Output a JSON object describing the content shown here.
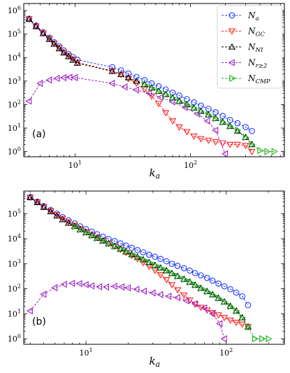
{
  "chart_data": [
    {
      "type": "line",
      "panel_label": "(a)",
      "xlabel": "k_a",
      "xscale": "log",
      "yscale": "log",
      "xlim": [
        3.6,
        650
      ],
      "ylim": [
        0.6,
        2000000
      ],
      "legend": {
        "position": "top-right",
        "show": true
      },
      "series": [
        {
          "name": "N_a",
          "color": "#1f3cff",
          "marker": "circle",
          "x": [
            4,
            4.6,
            5.3,
            6,
            6.6,
            7.3,
            8,
            8.8,
            9.6,
            10.5,
            21,
            25,
            29,
            34,
            40,
            46,
            53,
            61,
            70,
            80,
            93,
            107,
            123,
            143,
            165,
            190,
            220,
            255,
            300,
            340
          ],
          "y": [
            450000,
            230000,
            120000,
            70000,
            45000,
            30000,
            20000,
            14000,
            10500,
            8000,
            3900,
            2900,
            2100,
            1500,
            1100,
            800,
            600,
            440,
            320,
            240,
            170,
            125,
            90,
            65,
            47,
            33,
            22,
            16,
            11,
            7.5
          ]
        },
        {
          "name": "N_GC",
          "color": "#ff2020",
          "marker": "triangle-down",
          "x": [
            4,
            4.6,
            5.3,
            6,
            6.6,
            7.3,
            8,
            8.8,
            9.6,
            10.5,
            21,
            25,
            29,
            34,
            40,
            46,
            53,
            61,
            70,
            80,
            93,
            107,
            123,
            143,
            165,
            190,
            220,
            255,
            300,
            340
          ],
          "y": [
            440000,
            220000,
            110000,
            65000,
            40000,
            26000,
            17000,
            12000,
            8500,
            6200,
            2700,
            1900,
            1250,
            800,
            450,
            230,
            110,
            45,
            20,
            11,
            7,
            4.5,
            3.5,
            3,
            2.6,
            2.3,
            2,
            2,
            1.8,
            1
          ]
        },
        {
          "name": "N_NI",
          "color": "#000000",
          "marker": "triangle-up",
          "x": [
            4,
            4.6,
            5.3,
            6,
            6.6,
            7.3,
            8,
            8.8,
            9.6,
            10.5,
            21,
            25,
            29,
            34,
            40,
            46,
            53,
            61,
            70,
            80,
            93,
            107,
            123,
            143,
            165,
            190,
            220,
            255,
            300,
            340
          ],
          "y": [
            430000,
            210000,
            105000,
            60000,
            38000,
            24000,
            16000,
            11000,
            7800,
            5800,
            2600,
            1900,
            1400,
            1000,
            720,
            520,
            370,
            270,
            195,
            140,
            100,
            72,
            52,
            37,
            26,
            18,
            12,
            7.5,
            4,
            2
          ]
        },
        {
          "name": "N_{r≥2}",
          "color": "#9b1fc0",
          "marker": "triangle-left",
          "x": [
            4,
            5,
            6,
            7,
            8,
            9,
            10,
            21,
            27,
            34,
            44,
            55,
            70,
            90,
            115,
            140,
            165,
            200
          ],
          "y": [
            140,
            800,
            1100,
            1300,
            1400,
            1450,
            1400,
            800,
            560,
            420,
            300,
            200,
            130,
            75,
            40,
            20,
            8,
            0.8
          ]
        },
        {
          "name": "N_CMP",
          "color": "#1eb01e",
          "marker": "triangle-right",
          "x": [
            40,
            46,
            53,
            61,
            70,
            80,
            93,
            107,
            123,
            143,
            165,
            190,
            220,
            255,
            300,
            340,
            400,
            460,
            530
          ],
          "y": [
            720,
            520,
            370,
            270,
            195,
            140,
            100,
            72,
            52,
            37,
            26,
            18,
            12,
            8,
            4,
            2,
            1.1,
            1,
            1
          ]
        }
      ]
    },
    {
      "type": "line",
      "panel_label": "(b)",
      "xlabel": "k_a",
      "xscale": "log",
      "yscale": "log",
      "xlim": [
        3.6,
        260
      ],
      "ylim": [
        0.6,
        800000
      ],
      "legend": {
        "show": false
      },
      "series": [
        {
          "name": "N_a",
          "color": "#1f3cff",
          "marker": "circle",
          "x": [
            4,
            4.5,
            5,
            5.6,
            6.2,
            6.8,
            7.5,
            8.3,
            9.1,
            10,
            11,
            12,
            13.2,
            14.5,
            16,
            17.6,
            19.3,
            21.2,
            23.3,
            25.6,
            28.2,
            31,
            34,
            37.5,
            41,
            45,
            50,
            55,
            60,
            66,
            73,
            80,
            88,
            97,
            107,
            118,
            130,
            143
          ],
          "y": [
            460000,
            300000,
            200000,
            140000,
            100000,
            73000,
            54000,
            41000,
            31000,
            24000,
            19000,
            15000,
            12000,
            9800,
            8000,
            6500,
            5300,
            4300,
            3500,
            2850,
            2300,
            1900,
            1550,
            1250,
            1000,
            820,
            660,
            530,
            420,
            340,
            270,
            210,
            160,
            125,
            95,
            70,
            50,
            22
          ]
        },
        {
          "name": "N_GC",
          "color": "#ff2020",
          "marker": "triangle-down",
          "x": [
            4,
            4.5,
            5,
            5.6,
            6.2,
            6.8,
            7.5,
            8.3,
            9.1,
            10,
            11,
            12,
            13.2,
            14.5,
            16,
            17.6,
            19.3,
            21.2,
            23.3,
            25.6,
            28.2,
            31,
            34,
            37.5,
            41,
            45,
            50,
            55,
            60,
            66,
            73,
            80,
            88,
            97,
            107,
            118,
            130,
            143
          ],
          "y": [
            450000,
            290000,
            190000,
            130000,
            90000,
            64000,
            46000,
            34000,
            25000,
            19000,
            14500,
            11000,
            8400,
            6400,
            4900,
            3700,
            2800,
            2100,
            1550,
            1100,
            780,
            540,
            360,
            230,
            145,
            90,
            55,
            35,
            24,
            18,
            14,
            11,
            9,
            7,
            5.5,
            4.5,
            3.8,
            3
          ]
        },
        {
          "name": "N_NI",
          "color": "#000000",
          "marker": "triangle-up",
          "x": [
            4,
            4.5,
            5,
            5.6,
            6.2,
            6.8,
            7.5,
            8.3,
            9.1,
            10,
            11,
            12,
            13.2,
            14.5,
            16,
            17.6,
            19.3,
            21.2,
            23.3,
            25.6,
            28.2,
            31,
            34,
            37.5,
            41,
            45,
            50,
            55,
            60,
            66,
            73,
            80,
            88,
            97,
            107,
            118,
            130,
            143
          ],
          "y": [
            440000,
            280000,
            180000,
            120000,
            82000,
            58000,
            42000,
            31000,
            23000,
            17500,
            13500,
            10500,
            8200,
            6400,
            5000,
            3900,
            3000,
            2350,
            1850,
            1450,
            1120,
            870,
            680,
            530,
            410,
            315,
            240,
            185,
            140,
            105,
            78,
            58,
            42,
            30,
            20,
            13,
            7,
            3
          ]
        },
        {
          "name": "N_{r≥2}",
          "color": "#9b1fc0",
          "marker": "triangle-left",
          "x": [
            4,
            5,
            6,
            7,
            8,
            9,
            10,
            11,
            12.5,
            14,
            16,
            18,
            20,
            23,
            26,
            30,
            34,
            39,
            45,
            52,
            60,
            70,
            80,
            90,
            97
          ],
          "y": [
            13,
            60,
            110,
            150,
            165,
            160,
            145,
            130,
            120,
            118,
            125,
            118,
            108,
            95,
            80,
            68,
            58,
            50,
            44,
            33,
            25,
            17,
            10,
            4,
            1
          ]
        },
        {
          "name": "N_CMP",
          "color": "#1eb01e",
          "marker": "triangle-right",
          "x": [
            8.3,
            9.1,
            10,
            11,
            12,
            13.2,
            14.5,
            16,
            17.6,
            19.3,
            21.2,
            23.3,
            25.6,
            28.2,
            31,
            34,
            37.5,
            41,
            45,
            50,
            55,
            60,
            66,
            73,
            80,
            88,
            97,
            107,
            118,
            130,
            143,
            160,
            180,
            200
          ],
          "y": [
            31000,
            23000,
            17500,
            13500,
            10500,
            8200,
            6400,
            5000,
            3900,
            3000,
            2350,
            1850,
            1450,
            1120,
            870,
            680,
            530,
            410,
            315,
            240,
            185,
            140,
            105,
            78,
            58,
            42,
            30,
            20,
            13,
            7,
            3,
            1,
            1,
            1
          ]
        }
      ]
    }
  ]
}
